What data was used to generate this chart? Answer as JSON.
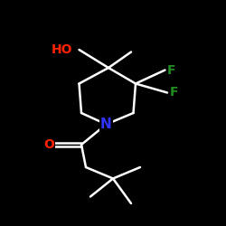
{
  "bg_color": "#000000",
  "bond_color": "#ffffff",
  "N_color": "#3333ff",
  "O_color": "#ff2200",
  "F_color": "#228b22",
  "HO_color": "#ff2200",
  "line_width": 1.8,
  "font_size": 10,
  "fig_size": [
    2.5,
    2.5
  ],
  "dpi": 100,
  "xlim": [
    0,
    10
  ],
  "ylim": [
    0,
    10
  ]
}
